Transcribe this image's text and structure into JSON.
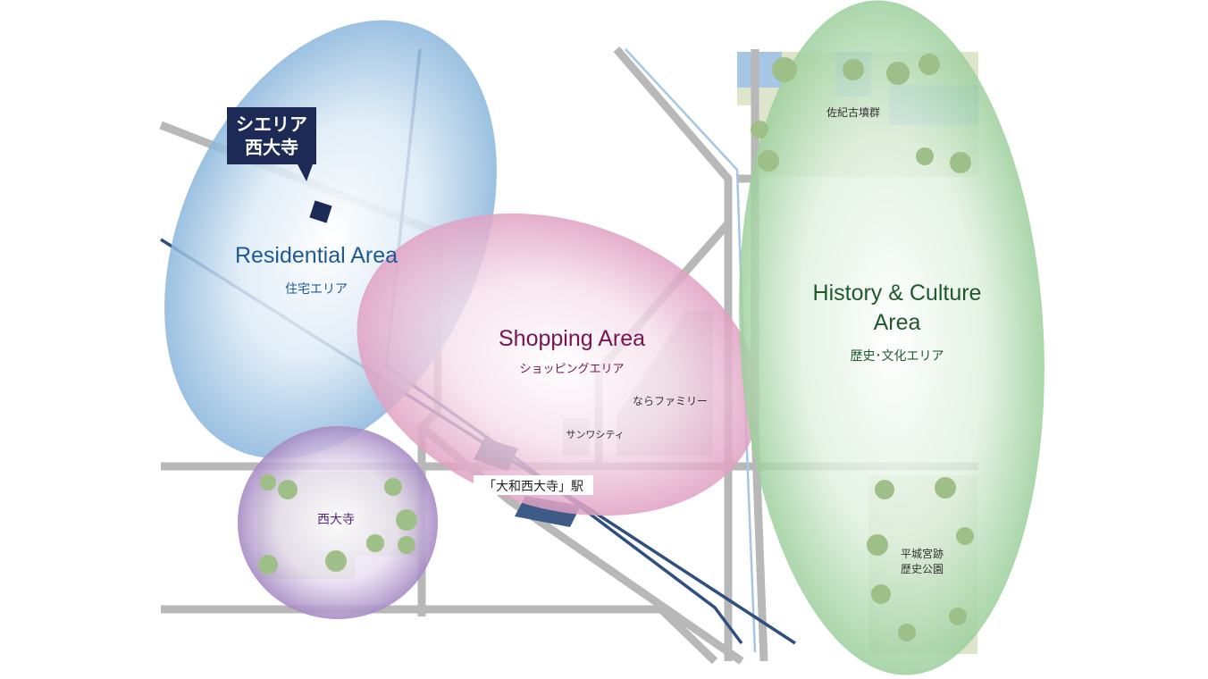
{
  "map": {
    "areas": {
      "residential": {
        "title": "Residential Area",
        "subtitle": "住宅エリア",
        "color": "#1e5b96"
      },
      "shopping": {
        "title": "Shopping Area",
        "subtitle": "ショッピングエリア",
        "color": "#7a1450"
      },
      "history": {
        "title_line1": "History & Culture",
        "title_line2": "Area",
        "subtitle": "歴史･文化エリア",
        "color": "#1f5a2f"
      },
      "saidaiji_temple": {
        "label": "西大寺",
        "color": "#5a2a7a"
      }
    },
    "property": {
      "line1": "シエリア",
      "line2": "西大寺",
      "color": "#1c2a55"
    },
    "landmarks": {
      "saki_kofun": "佐紀古墳群",
      "nara_family": "ならファミリー",
      "sunwa_city": "サンワシティ",
      "heijo_line1": "平城宮跡",
      "heijo_line2": "歴史公園"
    },
    "station": {
      "label": "「大和西大寺」駅",
      "color": "#3e5a86"
    },
    "colors": {
      "road": "#b8b8b8",
      "rail": "#2f4f80",
      "water": "#a6c6e6",
      "park": "#d6dfc4",
      "tree": "#9fbf88",
      "residential_zone": "#8ab6dc",
      "shopping_zone": "#e2a2c4",
      "history_zone": "#9fd19f",
      "temple_zone": "#a78bc4"
    }
  }
}
